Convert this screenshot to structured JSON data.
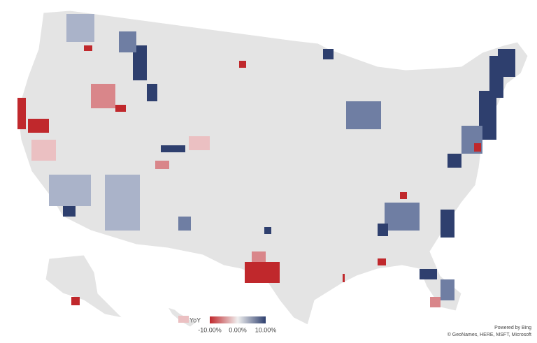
{
  "legend": {
    "title": "YoY",
    "ticks": [
      {
        "value": -10,
        "label": "-10.00%"
      },
      {
        "value": 0,
        "label": "0.00%"
      },
      {
        "value": 10,
        "label": "10.00%"
      }
    ],
    "range": [
      -10,
      10
    ],
    "colors": [
      "#c0282c",
      "#efefef",
      "#2e3f6e"
    ]
  },
  "attribution": {
    "provider": "Powered by Bing",
    "credits": "© GeoNames, HERE, MSFT, Microsoft"
  }
}
